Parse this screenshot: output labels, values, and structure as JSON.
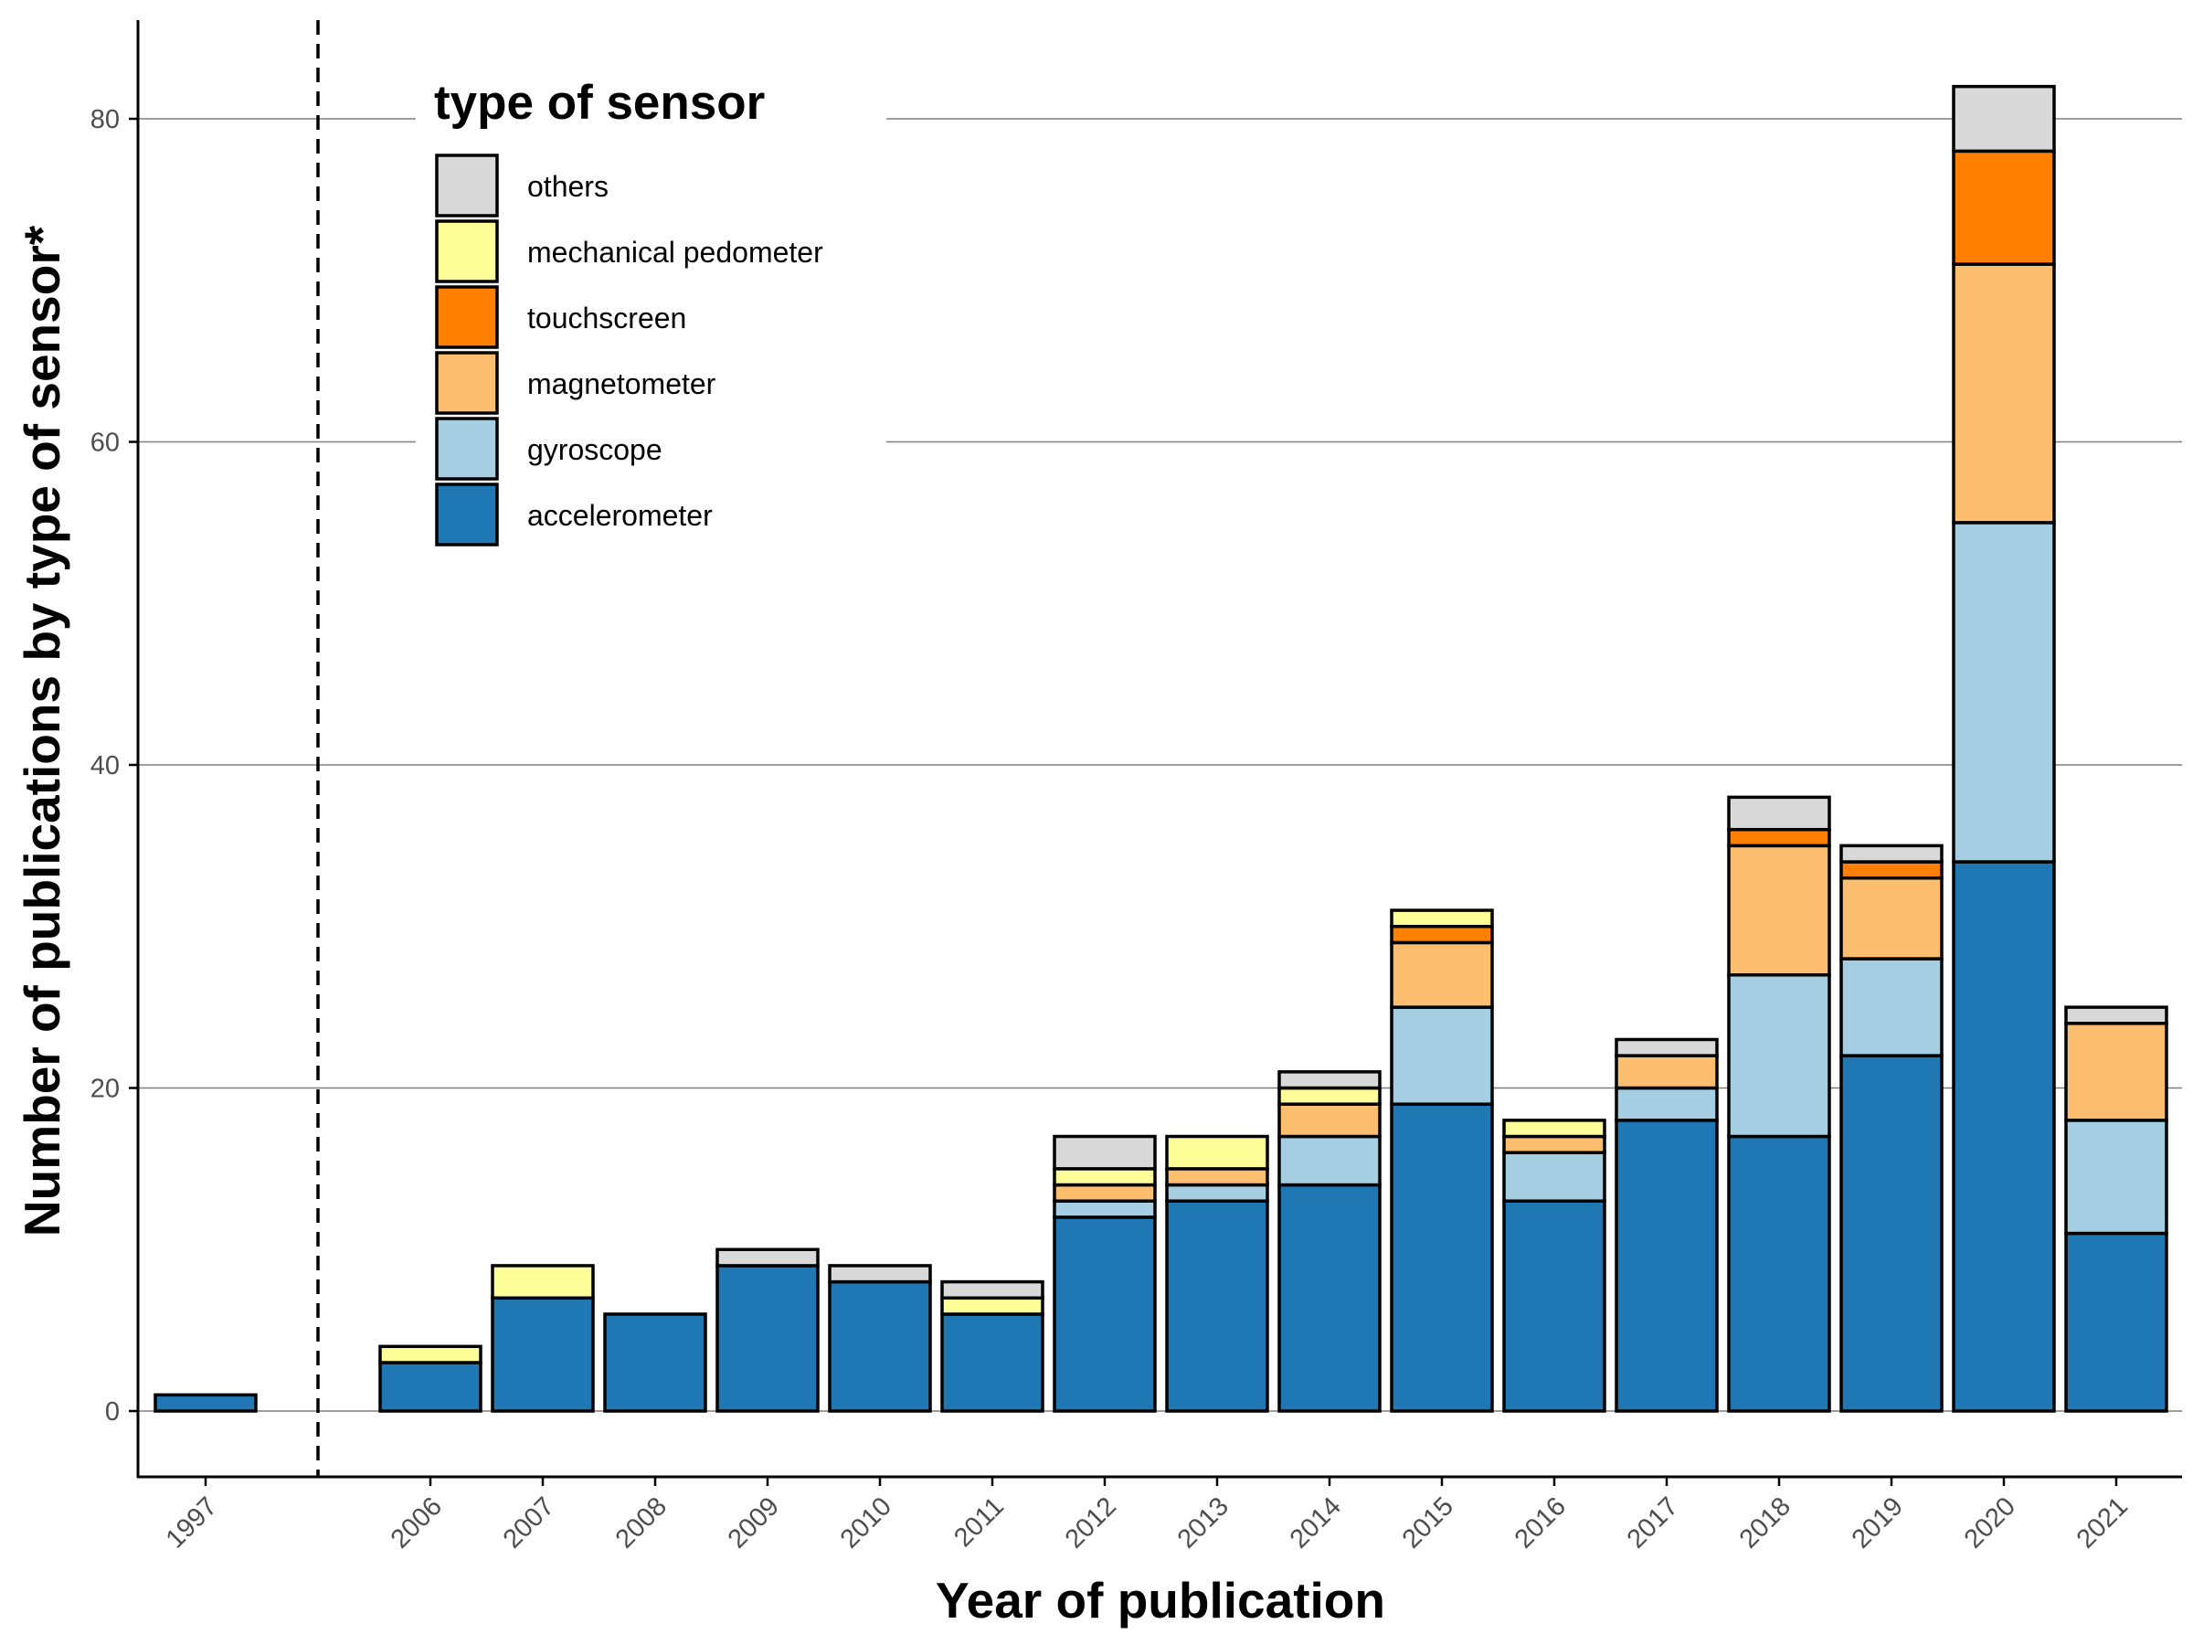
{
  "chart_data": {
    "type": "bar",
    "stacked": true,
    "xlabel": "Year of publication",
    "ylabel": "Number of publications by type of sensor*",
    "categories": [
      "1997",
      "2006",
      "2007",
      "2008",
      "2009",
      "2010",
      "2011",
      "2012",
      "2013",
      "2014",
      "2015",
      "2016",
      "2017",
      "2018",
      "2019",
      "2020",
      "2021"
    ],
    "series": [
      {
        "name": "accelerometer",
        "color": "#1f78b4",
        "values": [
          1,
          3,
          7,
          6,
          9,
          8,
          6,
          12,
          13,
          14,
          19,
          13,
          18,
          17,
          22,
          34,
          11
        ]
      },
      {
        "name": "gyroscope",
        "color": "#a6cee3",
        "values": [
          0,
          0,
          0,
          0,
          0,
          0,
          0,
          1,
          1,
          3,
          6,
          3,
          2,
          10,
          6,
          21,
          7
        ]
      },
      {
        "name": "magnetometer",
        "color": "#fdbf6f",
        "values": [
          0,
          0,
          0,
          0,
          0,
          0,
          0,
          1,
          1,
          2,
          4,
          1,
          2,
          8,
          5,
          16,
          6
        ]
      },
      {
        "name": "touchscreen",
        "color": "#ff7f00",
        "values": [
          0,
          0,
          0,
          0,
          0,
          0,
          0,
          0,
          0,
          0,
          1,
          0,
          0,
          1,
          1,
          7,
          0
        ]
      },
      {
        "name": "mechanical pedometer",
        "color": "#ffff99",
        "values": [
          0,
          1,
          2,
          0,
          0,
          0,
          1,
          1,
          2,
          1,
          1,
          1,
          0,
          0,
          0,
          0,
          0
        ]
      },
      {
        "name": "others",
        "color": "#d9d9d9",
        "values": [
          0,
          0,
          0,
          0,
          1,
          1,
          1,
          2,
          0,
          1,
          0,
          0,
          1,
          2,
          1,
          4,
          1
        ]
      }
    ],
    "legend": {
      "title": "type of sensor",
      "position": "top-left",
      "order": [
        "others",
        "mechanical pedometer",
        "touchscreen",
        "magnetometer",
        "gyroscope",
        "accelerometer"
      ]
    },
    "ylim": [
      -4,
      86
    ],
    "yticks": [
      0,
      20,
      40,
      60,
      80
    ],
    "grid": "horizontal major",
    "axis_break": "dashed vertical line between 1997 and 2006"
  }
}
